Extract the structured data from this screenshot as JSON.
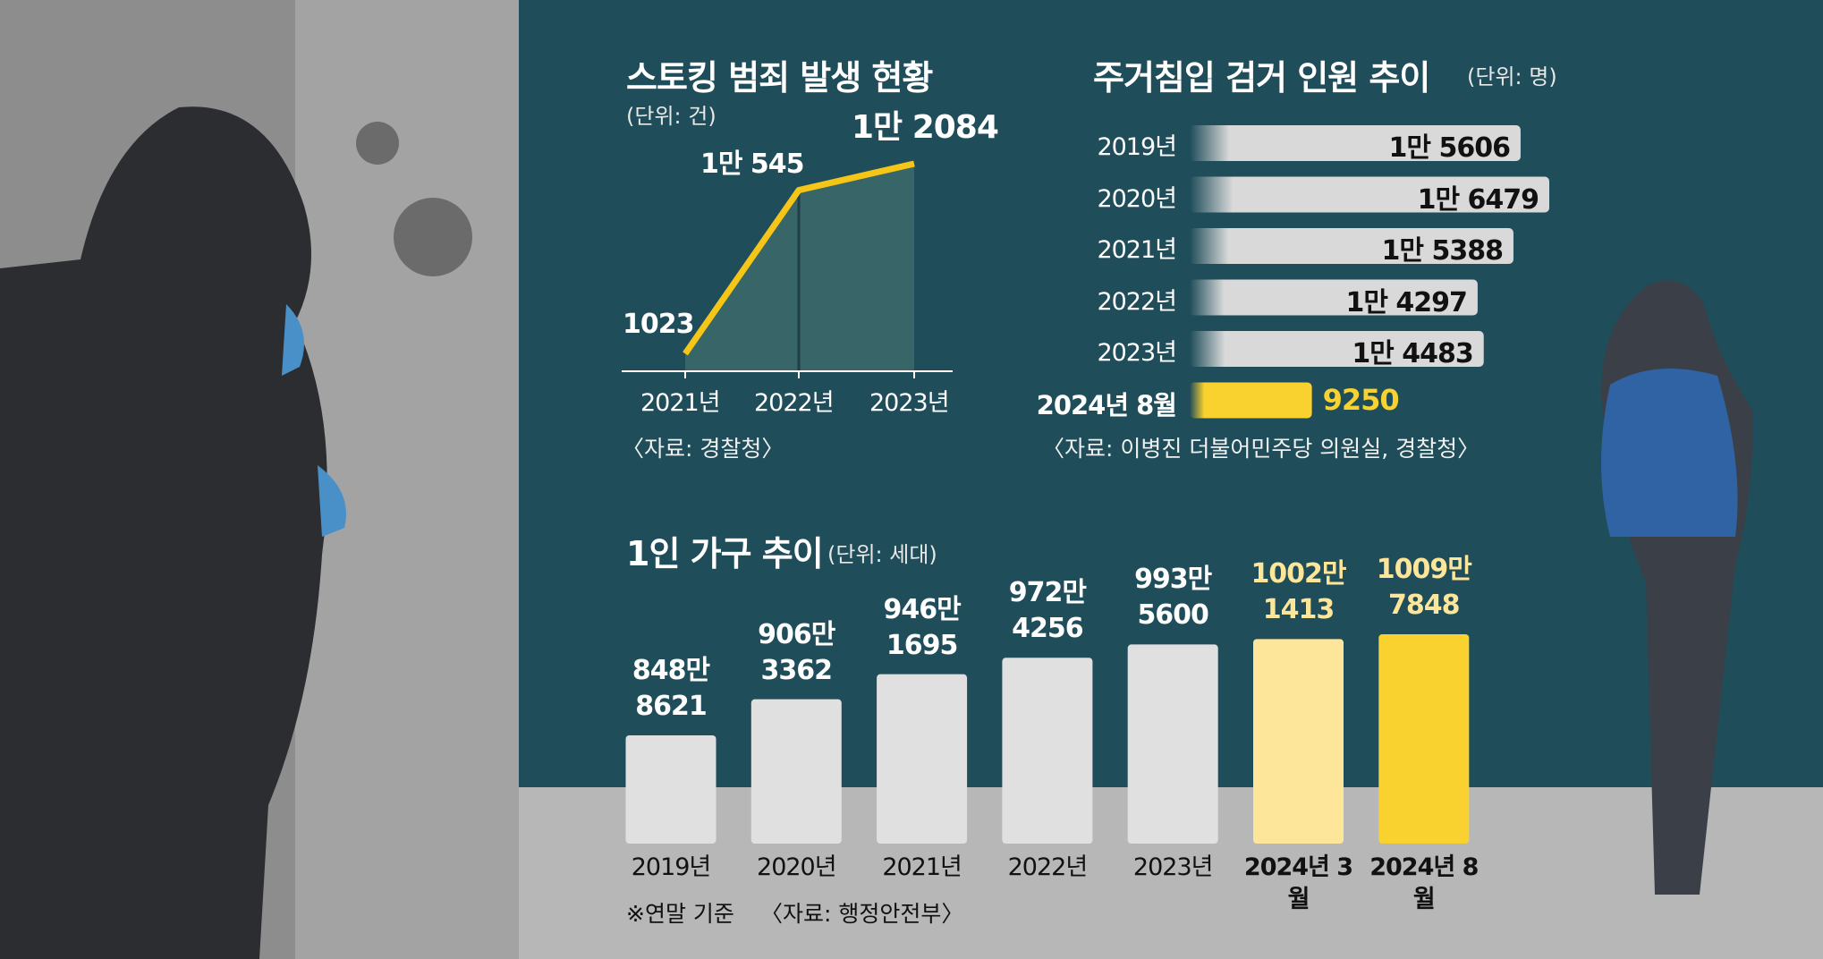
{
  "chart_data": [
    {
      "type": "line",
      "title": "스토킹 범죄 발생 현황",
      "unit": "(단위: 건)",
      "categories": [
        "2021년",
        "2022년",
        "2023년"
      ],
      "values": [
        1023,
        10545,
        12084
      ],
      "value_labels": [
        "1023",
        "1만 545",
        "1만 2084"
      ],
      "color": "#f5c518",
      "source": "〈자료: 경찰청〉"
    },
    {
      "type": "barh",
      "title": "주거침입 검거 인원 추이",
      "unit": "(단위: 명)",
      "categories": [
        "2019년",
        "2020년",
        "2021년",
        "2022년",
        "2023년",
        "2024년 8월"
      ],
      "values": [
        15606,
        16479,
        15388,
        14297,
        14483,
        9250
      ],
      "value_labels": [
        "1만 5606",
        "1만 6479",
        "1만 5388",
        "1만 4297",
        "1만 4483",
        "9250"
      ],
      "colors": [
        "#d9d9d9",
        "#d9d9d9",
        "#d9d9d9",
        "#d9d9d9",
        "#d9d9d9",
        "#f9d22f"
      ],
      "source": "〈자료: 이병진 더불어민주당 의원실, 경찰청〉"
    },
    {
      "type": "bar",
      "title": "1인 가구 추이",
      "unit": "(단위: 세대)",
      "categories": [
        "2019년",
        "2020년",
        "2021년",
        "2022년",
        "2023년",
        "2024년 3월",
        "2024년 8월"
      ],
      "values": [
        8488621,
        9063362,
        9461695,
        9724256,
        9935600,
        10021413,
        10097848
      ],
      "value_labels": [
        "848만 8621",
        "906만 3362",
        "946만 1695",
        "972만 4256",
        "993만 5600",
        "1002만 1413",
        "1009만 7848"
      ],
      "colors": [
        "#e0e0e0",
        "#e0e0e0",
        "#e0e0e0",
        "#e0e0e0",
        "#e0e0e0",
        "#fde69a",
        "#f9d22f"
      ],
      "note": "※연말 기준",
      "source": "〈자료: 행정안전부〉"
    }
  ]
}
